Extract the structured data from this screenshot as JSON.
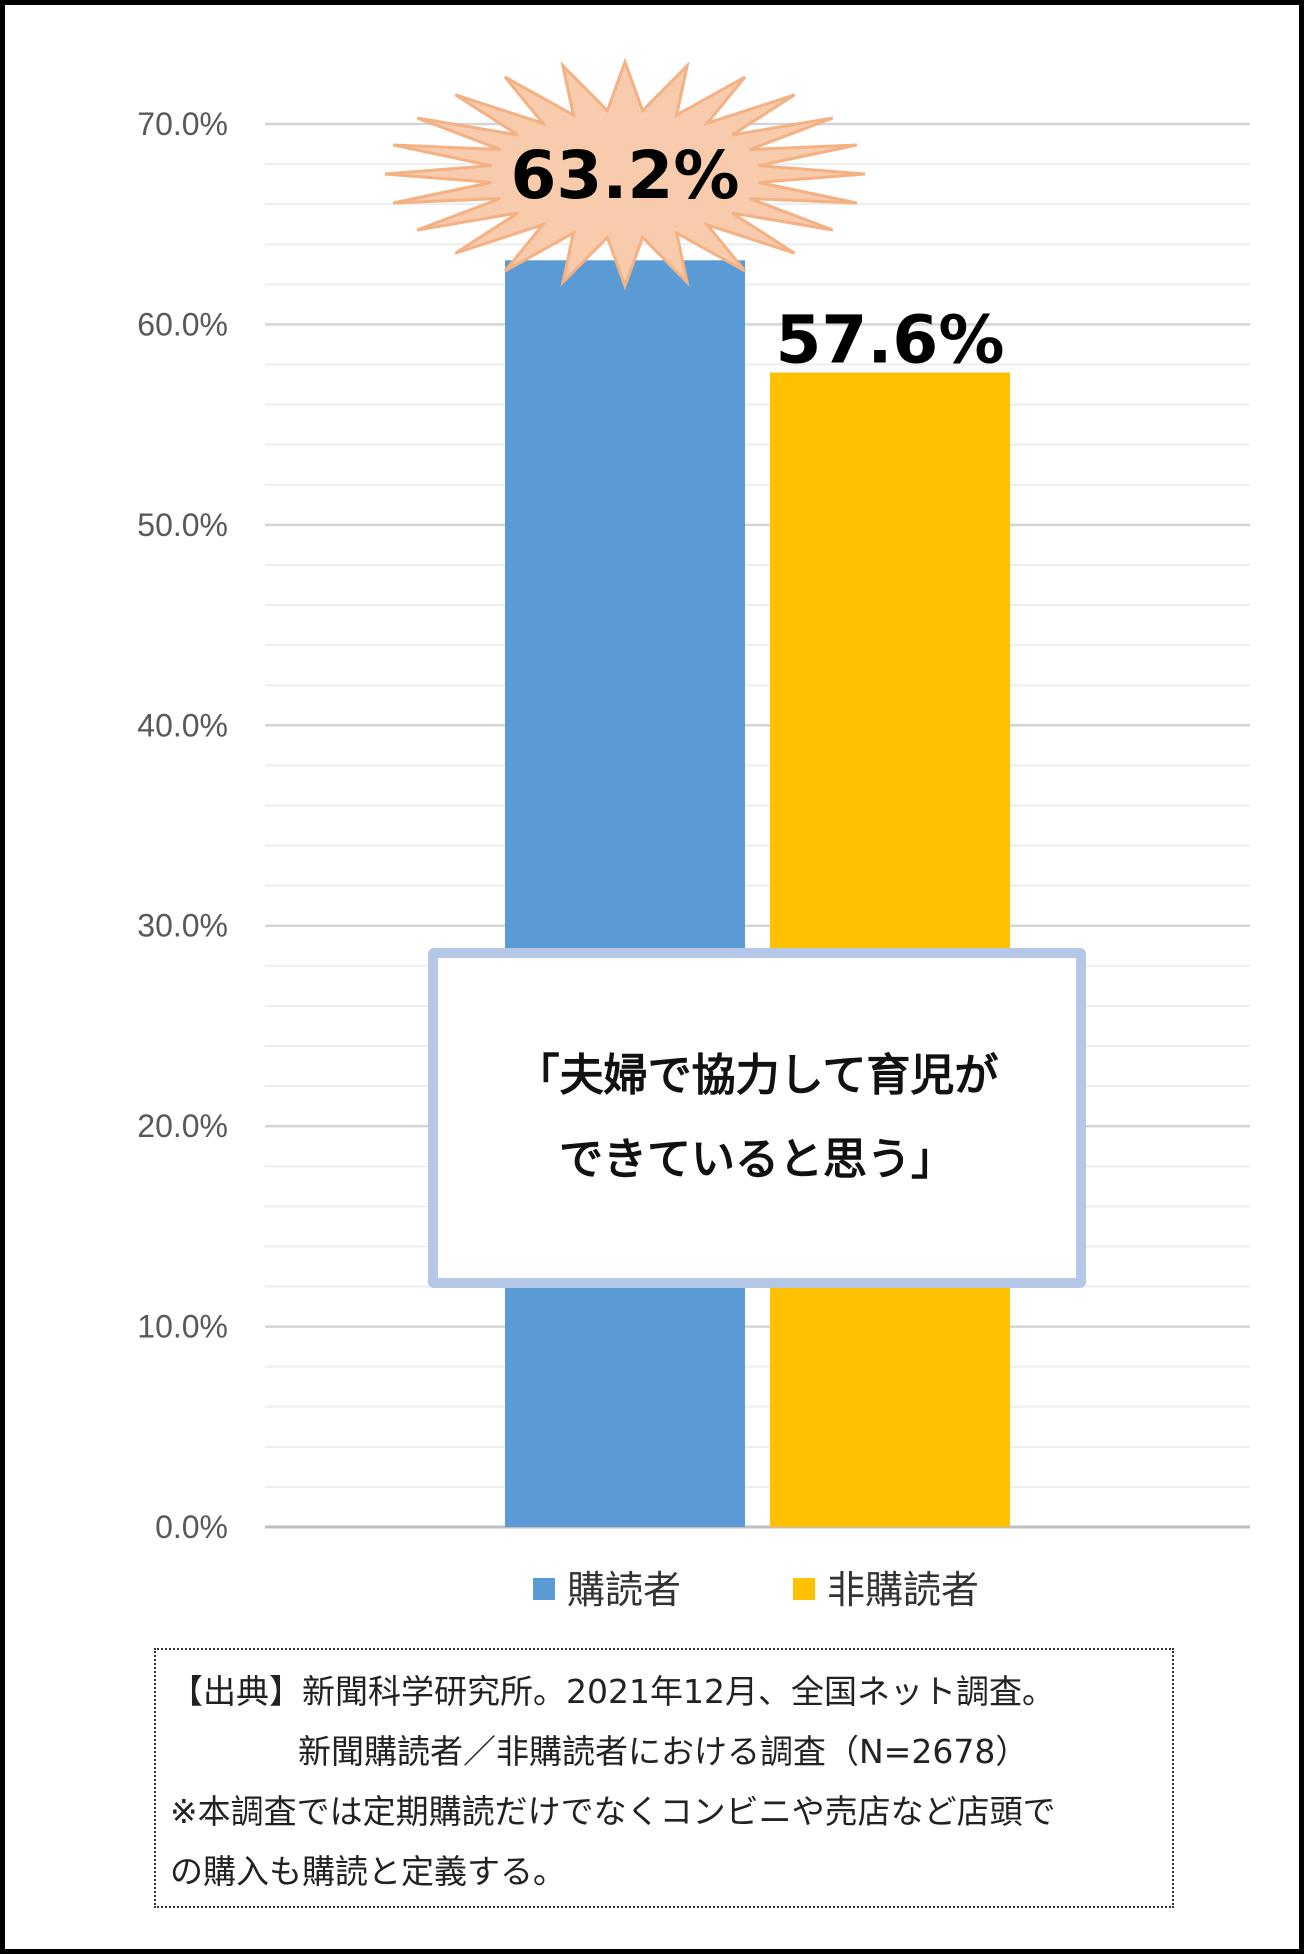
{
  "chart_data": {
    "type": "bar",
    "title": "",
    "xlabel": "",
    "ylabel": "",
    "ylim": [
      0,
      70
    ],
    "y_major_step": 10,
    "y_minor_step": 2,
    "y_tick_labels": [
      "0.0%",
      "10.0%",
      "20.0%",
      "30.0%",
      "40.0%",
      "50.0%",
      "60.0%",
      "70.0%"
    ],
    "grid": true,
    "legend_position": "bottom",
    "series": [
      {
        "name": "購読者",
        "value": 63.2,
        "label": "63.2%",
        "color": "#5b9bd5",
        "highlight": "starburst"
      },
      {
        "name": "非購読者",
        "value": 57.6,
        "label": "57.6%",
        "color": "#ffc000"
      }
    ],
    "annotation": {
      "lines": [
        "「夫婦で協力して育児が",
        "できていると思う」"
      ],
      "border_color": "#b4c7e7"
    },
    "starburst_color": "#f8cbad",
    "starburst_stroke": "#f4b183"
  },
  "source_note": {
    "lines": [
      "【出典】新聞科学研究所。2021年12月、全国ネット調査。",
      "新聞購読者／非購読者における調査（N=2678）",
      "※本調査では定期購読だけでなくコンビニや売店など店頭で",
      "の購入も購読と定義する。"
    ]
  }
}
